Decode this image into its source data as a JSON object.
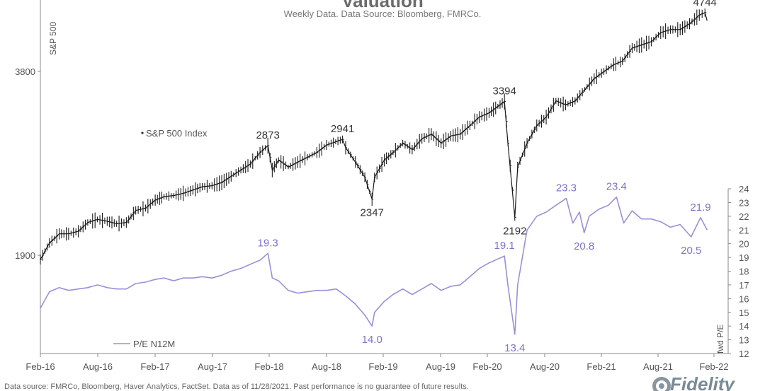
{
  "header": {
    "title": "Valuation",
    "subtitle": "Weekly Data. Data Source: Bloomberg, FMRCo."
  },
  "footer": {
    "source_text": "Data source: FMRCo, Bloomberg, Haver Analytics, FactSet. Data as of 11/28/2021. Past performance is no guarantee of future results.",
    "logo_text": "Fidelity"
  },
  "colors": {
    "spx_line": "#1a1a1a",
    "pe_line": "#9b8fdc",
    "pe_label": "#7f72cf",
    "axis": "#888888",
    "grid": "#e4e4e4"
  },
  "chart_data": {
    "type": "line",
    "x_ticks": [
      "Feb-16",
      "Aug-16",
      "Feb-17",
      "Aug-17",
      "Feb-18",
      "Aug-18",
      "Feb-19",
      "Aug-19",
      "Feb-20",
      "Aug-20",
      "Feb-21",
      "Aug-21",
      "Feb-22"
    ],
    "left_axis": {
      "label": "S&P 500",
      "ticks": [
        1900,
        3800
      ],
      "scale": "log"
    },
    "right_axis": {
      "label": "fwd P/E",
      "min": 12,
      "max": 24,
      "ticks": [
        12,
        13,
        14,
        15,
        16,
        17,
        18,
        19,
        20,
        21,
        22,
        23,
        24
      ]
    },
    "grid": false,
    "series": [
      {
        "name": "S&P 500 Index",
        "axis": "left",
        "style": "ohlc-bars",
        "points": [
          [
            "2016-02-01",
            1870
          ],
          [
            "2016-03-01",
            1990
          ],
          [
            "2016-04-01",
            2060
          ],
          [
            "2016-05-01",
            2060
          ],
          [
            "2016-06-01",
            2080
          ],
          [
            "2016-07-01",
            2150
          ],
          [
            "2016-08-01",
            2175
          ],
          [
            "2016-09-01",
            2160
          ],
          [
            "2016-10-01",
            2140
          ],
          [
            "2016-11-01",
            2150
          ],
          [
            "2016-12-01",
            2250
          ],
          [
            "2017-01-01",
            2270
          ],
          [
            "2017-02-01",
            2340
          ],
          [
            "2017-03-01",
            2370
          ],
          [
            "2017-04-01",
            2380
          ],
          [
            "2017-05-01",
            2400
          ],
          [
            "2017-06-01",
            2430
          ],
          [
            "2017-07-01",
            2460
          ],
          [
            "2017-08-01",
            2470
          ],
          [
            "2017-09-01",
            2500
          ],
          [
            "2017-10-01",
            2560
          ],
          [
            "2017-11-01",
            2620
          ],
          [
            "2017-12-01",
            2680
          ],
          [
            "2018-01-01",
            2800
          ],
          [
            "2018-01-26",
            2873
          ],
          [
            "2018-02-09",
            2620
          ],
          [
            "2018-03-01",
            2720
          ],
          [
            "2018-04-01",
            2650
          ],
          [
            "2018-05-01",
            2700
          ],
          [
            "2018-06-01",
            2750
          ],
          [
            "2018-07-01",
            2800
          ],
          [
            "2018-08-01",
            2880
          ],
          [
            "2018-09-21",
            2941
          ],
          [
            "2018-10-01",
            2850
          ],
          [
            "2018-11-01",
            2700
          ],
          [
            "2018-12-01",
            2550
          ],
          [
            "2018-12-24",
            2347
          ],
          [
            "2019-01-01",
            2550
          ],
          [
            "2019-02-01",
            2720
          ],
          [
            "2019-03-01",
            2800
          ],
          [
            "2019-04-01",
            2900
          ],
          [
            "2019-05-01",
            2830
          ],
          [
            "2019-06-01",
            2950
          ],
          [
            "2019-07-01",
            3000
          ],
          [
            "2019-08-01",
            2900
          ],
          [
            "2019-09-01",
            2980
          ],
          [
            "2019-10-01",
            3000
          ],
          [
            "2019-11-01",
            3100
          ],
          [
            "2019-12-01",
            3200
          ],
          [
            "2020-01-01",
            3250
          ],
          [
            "2020-02-19",
            3394
          ],
          [
            "2020-03-01",
            2900
          ],
          [
            "2020-03-23",
            2192
          ],
          [
            "2020-04-01",
            2650
          ],
          [
            "2020-05-01",
            2900
          ],
          [
            "2020-06-01",
            3100
          ],
          [
            "2020-07-01",
            3200
          ],
          [
            "2020-08-01",
            3400
          ],
          [
            "2020-09-01",
            3350
          ],
          [
            "2020-10-01",
            3400
          ],
          [
            "2020-11-01",
            3550
          ],
          [
            "2020-12-01",
            3700
          ],
          [
            "2021-01-01",
            3800
          ],
          [
            "2021-02-01",
            3900
          ],
          [
            "2021-03-01",
            3950
          ],
          [
            "2021-04-01",
            4150
          ],
          [
            "2021-05-01",
            4200
          ],
          [
            "2021-06-01",
            4250
          ],
          [
            "2021-07-01",
            4400
          ],
          [
            "2021-08-01",
            4450
          ],
          [
            "2021-09-01",
            4450
          ],
          [
            "2021-10-01",
            4550
          ],
          [
            "2021-11-01",
            4700
          ],
          [
            "2021-11-19",
            4744
          ],
          [
            "2021-11-26",
            4600
          ]
        ]
      },
      {
        "name": "P/E N12M",
        "axis": "right",
        "style": "line",
        "points": [
          [
            "2016-02-01",
            15.3
          ],
          [
            "2016-03-01",
            16.5
          ],
          [
            "2016-04-01",
            16.8
          ],
          [
            "2016-05-01",
            16.6
          ],
          [
            "2016-06-01",
            16.7
          ],
          [
            "2016-07-01",
            16.8
          ],
          [
            "2016-08-01",
            17.0
          ],
          [
            "2016-09-01",
            16.8
          ],
          [
            "2016-10-01",
            16.7
          ],
          [
            "2016-11-01",
            16.7
          ],
          [
            "2016-12-01",
            17.1
          ],
          [
            "2017-01-01",
            17.2
          ],
          [
            "2017-02-01",
            17.4
          ],
          [
            "2017-03-01",
            17.5
          ],
          [
            "2017-04-01",
            17.3
          ],
          [
            "2017-05-01",
            17.5
          ],
          [
            "2017-06-01",
            17.5
          ],
          [
            "2017-07-01",
            17.6
          ],
          [
            "2017-08-01",
            17.5
          ],
          [
            "2017-09-01",
            17.7
          ],
          [
            "2017-10-01",
            18.0
          ],
          [
            "2017-11-01",
            18.2
          ],
          [
            "2017-12-01",
            18.5
          ],
          [
            "2018-01-01",
            18.8
          ],
          [
            "2018-01-26",
            19.3
          ],
          [
            "2018-02-09",
            17.5
          ],
          [
            "2018-03-01",
            17.3
          ],
          [
            "2018-04-01",
            16.6
          ],
          [
            "2018-05-01",
            16.4
          ],
          [
            "2018-06-01",
            16.5
          ],
          [
            "2018-07-01",
            16.6
          ],
          [
            "2018-08-01",
            16.6
          ],
          [
            "2018-09-01",
            16.7
          ],
          [
            "2018-10-01",
            16.2
          ],
          [
            "2018-11-01",
            15.6
          ],
          [
            "2018-12-01",
            14.8
          ],
          [
            "2018-12-24",
            14.0
          ],
          [
            "2019-01-01",
            15.0
          ],
          [
            "2019-02-01",
            15.8
          ],
          [
            "2019-03-01",
            16.3
          ],
          [
            "2019-04-01",
            16.7
          ],
          [
            "2019-05-01",
            16.3
          ],
          [
            "2019-06-01",
            16.7
          ],
          [
            "2019-07-01",
            17.1
          ],
          [
            "2019-08-01",
            16.6
          ],
          [
            "2019-09-01",
            16.9
          ],
          [
            "2019-10-01",
            17.0
          ],
          [
            "2019-11-01",
            17.6
          ],
          [
            "2019-12-01",
            18.2
          ],
          [
            "2020-01-01",
            18.6
          ],
          [
            "2020-02-19",
            19.1
          ],
          [
            "2020-03-01",
            17.0
          ],
          [
            "2020-03-23",
            13.4
          ],
          [
            "2020-04-01",
            17.0
          ],
          [
            "2020-05-01",
            21.0
          ],
          [
            "2020-06-01",
            22.0
          ],
          [
            "2020-07-01",
            22.3
          ],
          [
            "2020-08-01",
            22.8
          ],
          [
            "2020-09-03",
            23.3
          ],
          [
            "2020-09-24",
            21.5
          ],
          [
            "2020-10-15",
            22.3
          ],
          [
            "2020-10-30",
            20.8
          ],
          [
            "2020-11-15",
            22.0
          ],
          [
            "2020-12-15",
            22.5
          ],
          [
            "2021-01-15",
            22.8
          ],
          [
            "2021-02-10",
            23.4
          ],
          [
            "2021-03-05",
            21.5
          ],
          [
            "2021-04-01",
            22.4
          ],
          [
            "2021-05-01",
            21.8
          ],
          [
            "2021-06-01",
            21.8
          ],
          [
            "2021-07-01",
            21.6
          ],
          [
            "2021-08-01",
            21.2
          ],
          [
            "2021-09-01",
            21.4
          ],
          [
            "2021-10-06",
            20.5
          ],
          [
            "2021-11-05",
            21.9
          ],
          [
            "2021-11-26",
            21.0
          ]
        ]
      }
    ],
    "annotations": [
      {
        "text": "2873",
        "series": "S&P 500 Index",
        "date": "2018-01-26",
        "value": 2873,
        "position": "above"
      },
      {
        "text": "2941",
        "series": "S&P 500 Index",
        "date": "2018-09-21",
        "value": 2941,
        "position": "above"
      },
      {
        "text": "2347",
        "series": "S&P 500 Index",
        "date": "2018-12-24",
        "value": 2347,
        "position": "below"
      },
      {
        "text": "3394",
        "series": "S&P 500 Index",
        "date": "2020-02-19",
        "value": 3394,
        "position": "above"
      },
      {
        "text": "2192",
        "series": "S&P 500 Index",
        "date": "2020-03-23",
        "value": 2192,
        "position": "below"
      },
      {
        "text": "4744",
        "series": "S&P 500 Index",
        "date": "2021-11-19",
        "value": 4744,
        "position": "above"
      },
      {
        "text": "19.3",
        "series": "P/E N12M",
        "date": "2018-01-26",
        "value": 19.3,
        "position": "above"
      },
      {
        "text": "14.0",
        "series": "P/E N12M",
        "date": "2018-12-24",
        "value": 14.0,
        "position": "below"
      },
      {
        "text": "19.1",
        "series": "P/E N12M",
        "date": "2020-02-19",
        "value": 19.1,
        "position": "above"
      },
      {
        "text": "13.4",
        "series": "P/E N12M",
        "date": "2020-03-23",
        "value": 13.4,
        "position": "below"
      },
      {
        "text": "23.3",
        "series": "P/E N12M",
        "date": "2020-09-03",
        "value": 23.3,
        "position": "above"
      },
      {
        "text": "20.8",
        "series": "P/E N12M",
        "date": "2020-10-30",
        "value": 20.8,
        "position": "below"
      },
      {
        "text": "23.4",
        "series": "P/E N12M",
        "date": "2021-02-10",
        "value": 23.4,
        "position": "above"
      },
      {
        "text": "20.5",
        "series": "P/E N12M",
        "date": "2021-10-06",
        "value": 20.5,
        "position": "below"
      },
      {
        "text": "21.9",
        "series": "P/E N12M",
        "date": "2021-11-05",
        "value": 21.9,
        "position": "above"
      }
    ],
    "legend": [
      {
        "text": "S&P 500 Index",
        "series": "S&P 500 Index"
      },
      {
        "text": "P/E N12M",
        "series": "P/E N12M"
      }
    ]
  }
}
